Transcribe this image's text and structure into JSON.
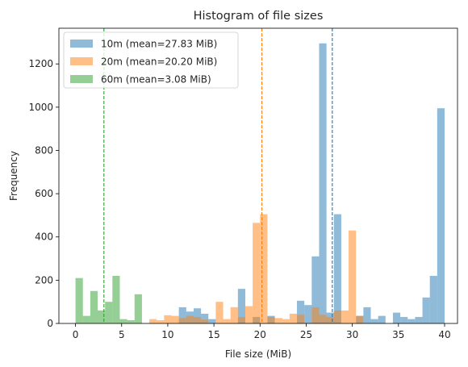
{
  "chart_data": {
    "type": "bar",
    "title": "Histogram of file sizes",
    "xlabel": "File size (MiB)",
    "ylabel": "Frequency",
    "xlim": [
      -1.8,
      41.4
    ],
    "ylim": [
      0,
      1365
    ],
    "xticks": [
      0,
      5,
      10,
      15,
      20,
      25,
      30,
      35,
      40
    ],
    "yticks": [
      0,
      200,
      400,
      600,
      800,
      1000,
      1200
    ],
    "grid": false,
    "legend_position": "upper-left",
    "series": [
      {
        "name": "10m (mean=27.83 MiB)",
        "color": "#1f77b4",
        "mean": 27.83,
        "bins": [
          [
            11.2,
            12.0,
            75
          ],
          [
            12.0,
            12.8,
            55
          ],
          [
            12.8,
            13.6,
            70
          ],
          [
            13.6,
            14.4,
            45
          ],
          [
            14.4,
            15.2,
            20
          ],
          [
            17.6,
            18.4,
            160
          ],
          [
            19.2,
            20.0,
            30
          ],
          [
            20.8,
            21.6,
            35
          ],
          [
            24.0,
            24.8,
            105
          ],
          [
            24.8,
            25.6,
            85
          ],
          [
            25.6,
            26.4,
            310
          ],
          [
            26.4,
            27.2,
            1295
          ],
          [
            27.2,
            28.0,
            50
          ],
          [
            28.0,
            28.8,
            505
          ],
          [
            30.4,
            31.2,
            35
          ],
          [
            31.2,
            32.0,
            75
          ],
          [
            32.0,
            32.8,
            20
          ],
          [
            32.8,
            33.6,
            35
          ],
          [
            34.4,
            35.2,
            50
          ],
          [
            35.2,
            36.0,
            30
          ],
          [
            36.0,
            36.8,
            20
          ],
          [
            36.8,
            37.6,
            30
          ],
          [
            37.6,
            38.4,
            120
          ],
          [
            38.4,
            39.2,
            220
          ],
          [
            39.2,
            40.0,
            995
          ]
        ]
      },
      {
        "name": "20m (mean=20.20 MiB)",
        "color": "#ff7f0e",
        "mean": 20.2,
        "bins": [
          [
            8.0,
            8.8,
            20
          ],
          [
            8.8,
            9.6,
            15
          ],
          [
            9.6,
            10.4,
            38
          ],
          [
            10.4,
            11.2,
            35
          ],
          [
            11.2,
            12.0,
            25
          ],
          [
            12.0,
            12.8,
            35
          ],
          [
            12.8,
            13.6,
            30
          ],
          [
            13.6,
            14.4,
            18
          ],
          [
            15.2,
            16.0,
            100
          ],
          [
            16.0,
            16.8,
            20
          ],
          [
            16.8,
            17.6,
            75
          ],
          [
            17.6,
            18.4,
            30
          ],
          [
            18.4,
            19.2,
            80
          ],
          [
            19.2,
            20.0,
            465
          ],
          [
            20.0,
            20.8,
            505
          ],
          [
            20.8,
            21.6,
            30
          ],
          [
            21.6,
            22.4,
            25
          ],
          [
            22.4,
            23.2,
            20
          ],
          [
            23.2,
            24.0,
            45
          ],
          [
            24.0,
            24.8,
            40
          ],
          [
            25.6,
            26.4,
            75
          ],
          [
            26.4,
            27.2,
            40
          ],
          [
            27.2,
            28.0,
            30
          ],
          [
            28.0,
            28.8,
            60
          ],
          [
            28.8,
            29.6,
            60
          ],
          [
            29.6,
            30.4,
            430
          ],
          [
            30.4,
            31.2,
            35
          ]
        ]
      },
      {
        "name": "60m (mean=3.08 MiB)",
        "color": "#2ca02c",
        "mean": 3.08,
        "bins": [
          [
            0.0,
            0.8,
            210
          ],
          [
            0.8,
            1.6,
            35
          ],
          [
            1.6,
            2.4,
            150
          ],
          [
            2.4,
            3.2,
            60
          ],
          [
            3.2,
            4.0,
            100
          ],
          [
            4.0,
            4.8,
            220
          ],
          [
            4.8,
            5.6,
            20
          ],
          [
            5.6,
            6.4,
            15
          ],
          [
            6.4,
            7.2,
            135
          ]
        ]
      }
    ]
  }
}
